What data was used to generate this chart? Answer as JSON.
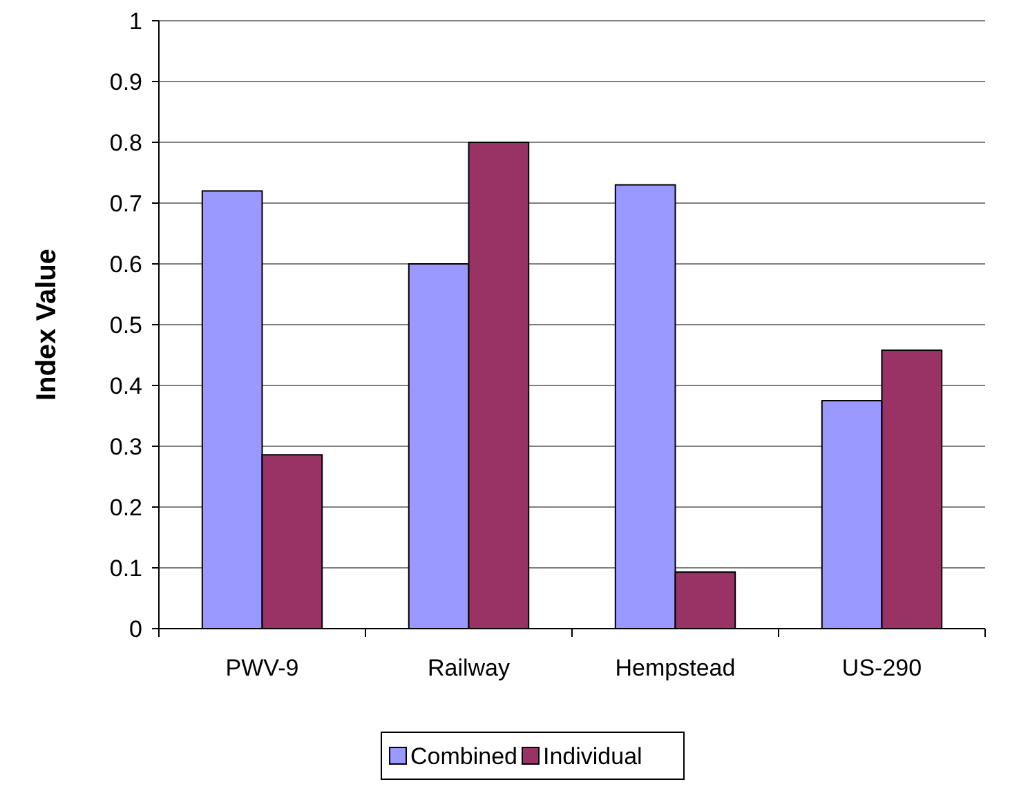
{
  "chart_data": {
    "type": "bar",
    "ylabel": "Index Value",
    "categories": [
      "PWV-9",
      "Railway",
      "Hempstead",
      "US-290"
    ],
    "series": [
      {
        "name": "Combined",
        "color": "#9999ff",
        "values": [
          0.72,
          0.6,
          0.73,
          0.375
        ]
      },
      {
        "name": "Individual",
        "color": "#993366",
        "values": [
          0.286,
          0.8,
          0.093,
          0.458
        ]
      }
    ],
    "ylim": [
      0,
      1
    ],
    "yticks": [
      0,
      0.1,
      0.2,
      0.3,
      0.4,
      0.5,
      0.6,
      0.7,
      0.8,
      0.9,
      1
    ],
    "grid": "y",
    "legend": "bottom"
  }
}
